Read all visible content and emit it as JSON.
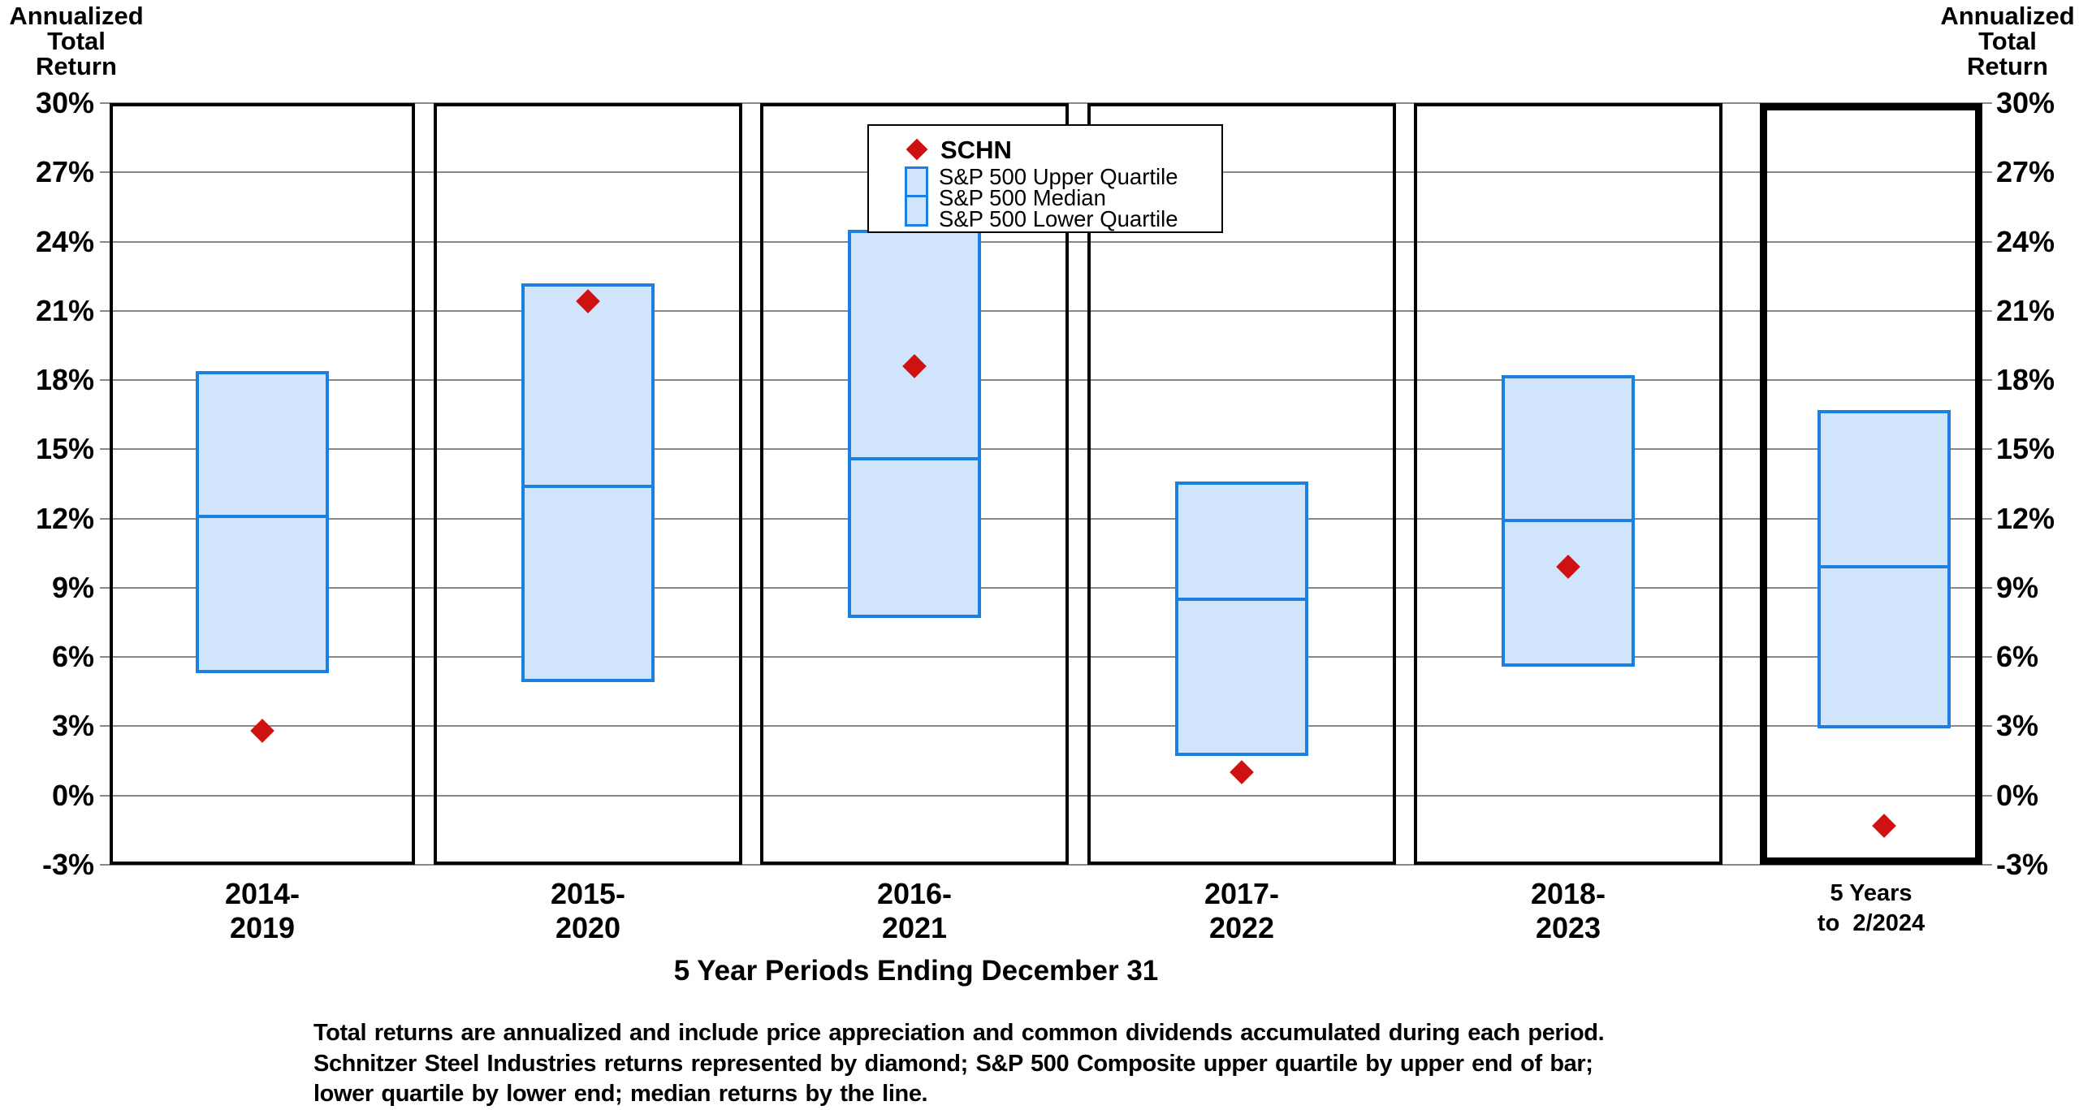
{
  "chart_data": {
    "type": "box",
    "title": "",
    "xlabel": "5 Year Periods Ending December 31",
    "ylabel": "Annualized Total Return",
    "ylabel_lines": [
      "Annualized",
      "Total",
      "Return"
    ],
    "ylim": [
      -3,
      30
    ],
    "ytick_values": [
      30,
      27,
      24,
      21,
      18,
      15,
      12,
      9,
      6,
      3,
      0,
      -3
    ],
    "ytick_suffix": "%",
    "grid": true,
    "legend_position": "top-center",
    "categories": [
      "2014-2019",
      "2015-2020",
      "2016-2021",
      "2017-2022",
      "2018-2023",
      "5 Years to 2/2024"
    ],
    "category_label_lines": [
      [
        "2014-",
        "2019"
      ],
      [
        "2015-",
        "2020"
      ],
      [
        "2016-",
        "2021"
      ],
      [
        "2017-",
        "2022"
      ],
      [
        "2018-",
        "2023"
      ],
      [
        "5 Years",
        "to  2/2024"
      ]
    ],
    "series": [
      {
        "name": "SCHN",
        "type": "marker",
        "marker": "diamond",
        "values": [
          2.8,
          21.4,
          18.6,
          1.0,
          9.9,
          -1.3
        ]
      },
      {
        "name": "S&P 500 Upper Quartile",
        "type": "box-top",
        "values": [
          18.4,
          22.2,
          24.5,
          13.6,
          18.2,
          16.7
        ]
      },
      {
        "name": "S&P 500 Median",
        "type": "box-median",
        "values": [
          12.1,
          13.4,
          14.6,
          8.5,
          11.9,
          9.9
        ]
      },
      {
        "name": "S&P 500 Lower Quartile",
        "type": "box-bottom",
        "values": [
          5.3,
          4.9,
          7.7,
          1.7,
          5.6,
          2.9
        ]
      }
    ]
  },
  "left_axis_title": {
    "lines": [
      "Annualized",
      "Total",
      "Return"
    ]
  },
  "right_axis_title": {
    "lines": [
      "Annualized",
      "Total",
      "Return"
    ]
  },
  "legend": {
    "schn_label": "SCHN",
    "items": [
      "S&P 500 Upper Quartile",
      "S&P 500 Median",
      "S&P 500 Lower Quartile"
    ]
  },
  "footnote": {
    "lines": [
      "Total returns are annualized and include price appreciation and common dividends accumulated during each period.",
      "Schnitzer Steel Industries returns represented by diamond; S&P 500 Composite upper quartile by upper end of bar;",
      "lower quartile by lower end; median returns by the line."
    ]
  },
  "colors": {
    "box_fill": "#d0e5fb",
    "box_border": "#1b80e0",
    "median_line": "#1b80e0",
    "marker": "#d01111",
    "gridline": "#888888",
    "panel_border": "#000000"
  }
}
